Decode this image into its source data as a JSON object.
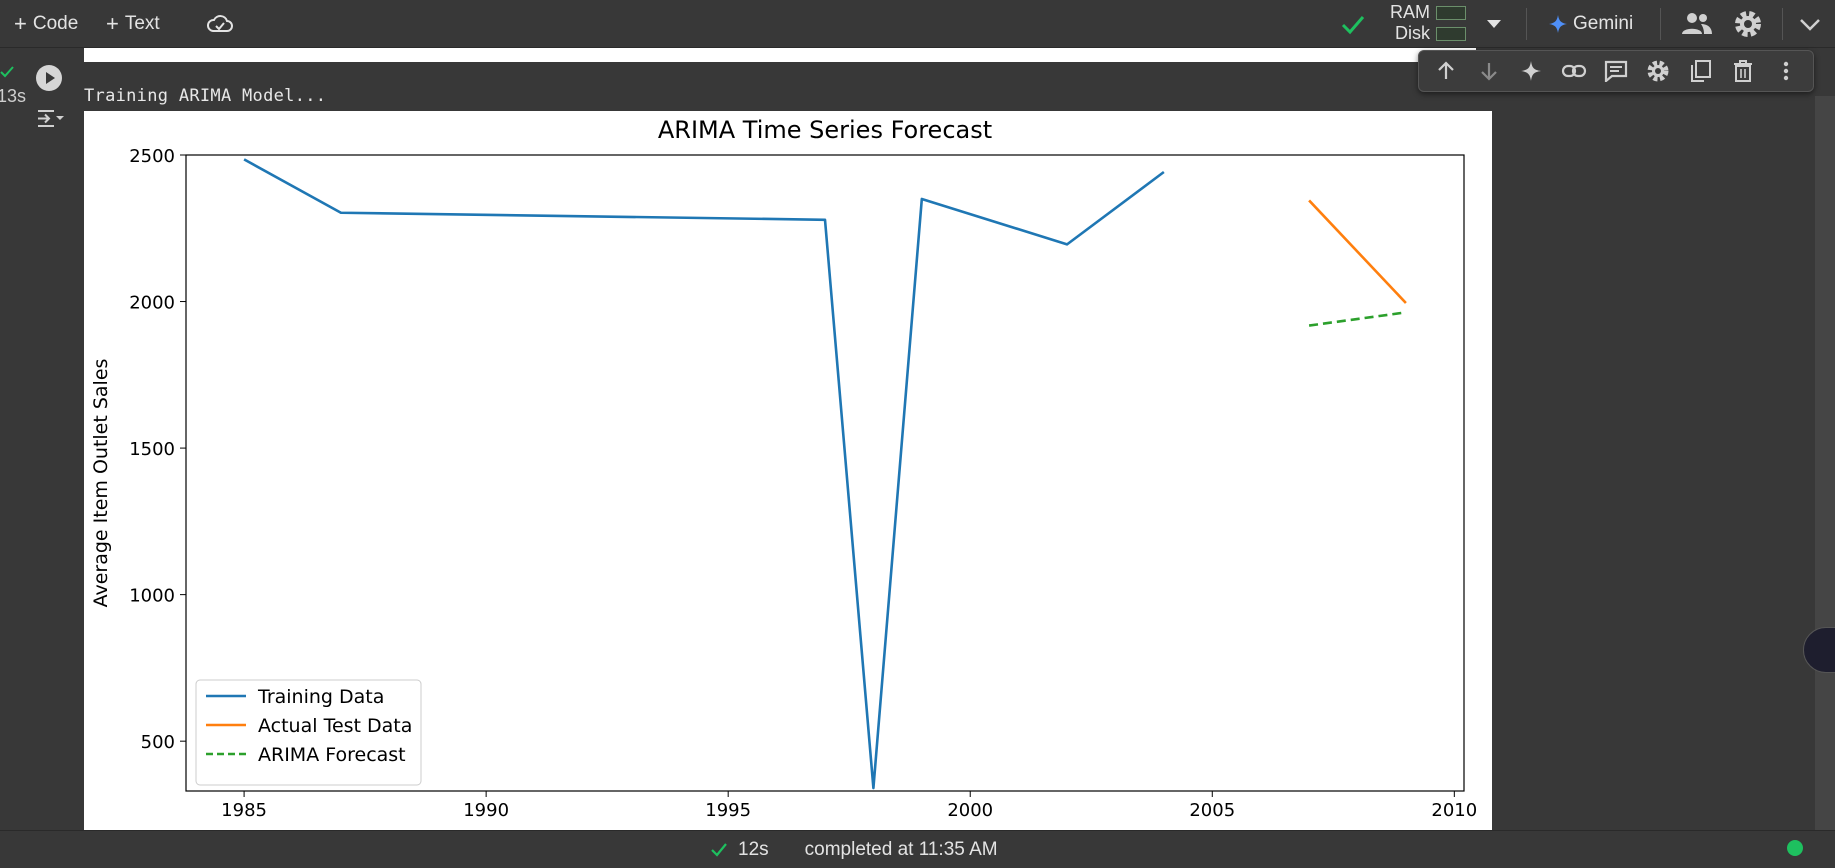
{
  "toolbar": {
    "code_label": "Code",
    "text_label": "Text",
    "ram_label": "RAM",
    "disk_label": "Disk",
    "gemini_label": "Gemini",
    "colors": {
      "check": "#1ec05f",
      "gemini": "#4f8ff7"
    }
  },
  "cell": {
    "exec_time": "13s",
    "output_text": "Training ARIMA Model..."
  },
  "status": {
    "duration": "12s",
    "completed": "completed at 11:35 AM"
  },
  "chart_data": {
    "type": "line",
    "title": "ARIMA Time Series Forecast",
    "xlabel": "",
    "ylabel": "Average Item Outlet Sales",
    "xlim": [
      1983.8,
      2010.2
    ],
    "ylim": [
      330,
      2500
    ],
    "x_ticks": [
      1985,
      1990,
      1995,
      2000,
      2005,
      2010
    ],
    "y_ticks": [
      500,
      1000,
      1500,
      2000,
      2500
    ],
    "legend_position": "lower-left",
    "grid": false,
    "series": [
      {
        "name": "Training Data",
        "color": "#1f77b4",
        "dash": "solid",
        "x": [
          1985,
          1987,
          1997,
          1998,
          1999,
          2002,
          2004
        ],
        "y": [
          2485,
          2303,
          2279,
          340,
          2350,
          2195,
          2442
        ]
      },
      {
        "name": "Actual Test Data",
        "color": "#ff7f0e",
        "dash": "solid",
        "x": [
          2007,
          2009
        ],
        "y": [
          2345,
          1995
        ]
      },
      {
        "name": "ARIMA Forecast",
        "color": "#2ca02c",
        "dash": "dashed",
        "x": [
          2007,
          2009
        ],
        "y": [
          1918,
          1963
        ]
      }
    ]
  }
}
